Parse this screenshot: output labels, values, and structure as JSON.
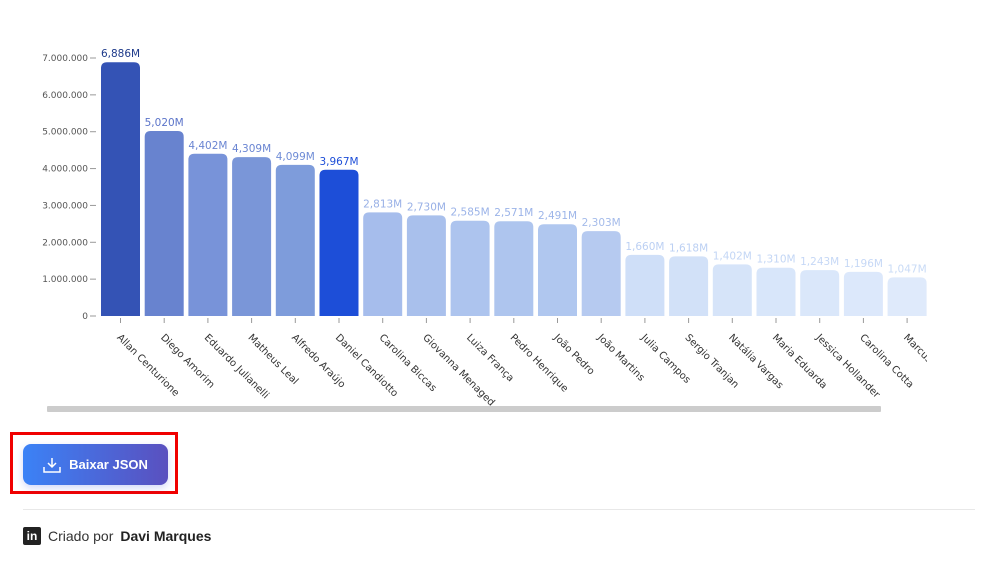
{
  "chart_data": {
    "type": "bar",
    "categories": [
      "Allan Centurione",
      "Diego Amorim",
      "Eduardo Julianelli",
      "Matheus Leal",
      "Alfredo Araújo",
      "Daniel Candiotto",
      "Carolina Biccas",
      "Giovanna Menaged",
      "Luiza França",
      "Pedro Henrique",
      "João Pedro",
      "João Martins",
      "Julia Campos",
      "Sergio Tranjan",
      "Natália Vargas",
      "Maria Eduarda",
      "Jessica Hollander",
      "Carolina Cotta",
      "Marcus"
    ],
    "values": [
      6886000,
      5020000,
      4402000,
      4309000,
      4099000,
      3967000,
      2813000,
      2730000,
      2585000,
      2571000,
      2491000,
      2303000,
      1660000,
      1618000,
      1402000,
      1310000,
      1243000,
      1196000,
      1047000
    ],
    "data_labels": [
      "6,886M",
      "5,020M",
      "4,402M",
      "4,309M",
      "4,099M",
      "3,967M",
      "2,813M",
      "2,730M",
      "2,585M",
      "2,571M",
      "2,491M",
      "2,303M",
      "1,660M",
      "1,618M",
      "1,402M",
      "1,310M",
      "1,243M",
      "1,196M",
      "1,047M"
    ],
    "colors": [
      "#3453b5",
      "#6883cf",
      "#7893d9",
      "#7a96d8",
      "#7e9cdb",
      "#1d4ed8",
      "#a6bdec",
      "#a9c0ec",
      "#adc4ee",
      "#aec5ee",
      "#b0c7ef",
      "#b6caf0",
      "#cfdff8",
      "#d2e1f8",
      "#d6e4f9",
      "#d8e6fa",
      "#dae7fa",
      "#dce8fb",
      "#dfeafb"
    ],
    "label_colors": [
      "#1e3a8a",
      "#5b74c9",
      "#6a85d2",
      "#6a85d2",
      "#6f8cd6",
      "#1d4ed8",
      "#98b0e6",
      "#98b0e6",
      "#9bb3e8",
      "#9bb3e8",
      "#9eb6e9",
      "#a4bbea",
      "#bcd0f3",
      "#bcd0f3",
      "#c3d6f5",
      "#c3d6f5",
      "#c6d8f6",
      "#c6d8f6",
      "#c9dbf6"
    ],
    "yticks": [
      "0",
      "1.000.000",
      "2.000.000",
      "3.000.000",
      "4.000.000",
      "5.000.000",
      "6.000.000",
      "7.000.000"
    ],
    "ylim": [
      0,
      7000000
    ],
    "grid": false
  },
  "actions": {
    "download_label": "Baixar JSON"
  },
  "footer": {
    "prefix": "Criado por",
    "author": "Davi Marques",
    "icon": "linkedin-icon"
  }
}
